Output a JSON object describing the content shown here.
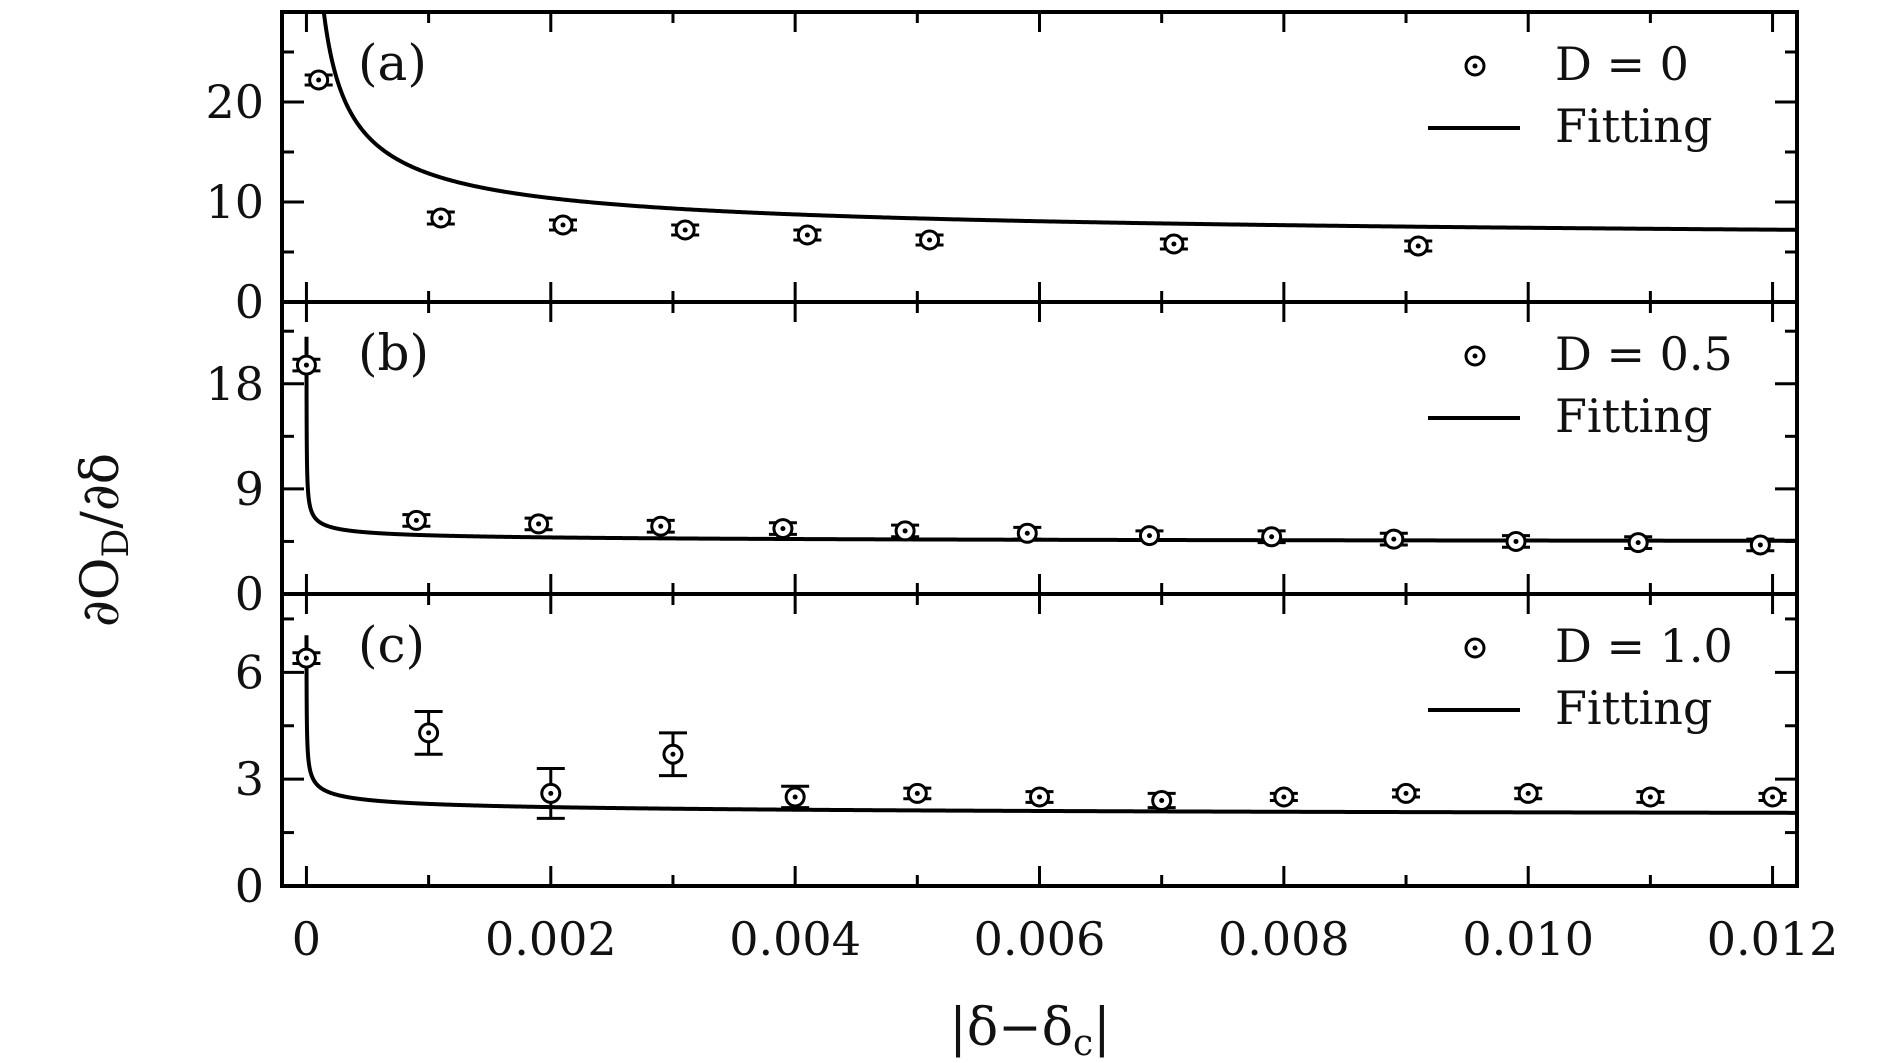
{
  "chart_data": {
    "type": "scatter",
    "xlabel": "|δ−δ_c|",
    "ylabel": "∂O_D/∂δ",
    "x_ticks": [
      "0",
      "0.002",
      "0.004",
      "0.006",
      "0.008",
      "0.010",
      "0.012"
    ],
    "x_tick_values": [
      0,
      0.002,
      0.004,
      0.006,
      0.008,
      0.01,
      0.012
    ],
    "xlim": [
      -0.0002,
      0.0122
    ],
    "panels": [
      {
        "label": "(a)",
        "legend": {
          "marker": "D = 0",
          "line": "Fitting"
        },
        "ylim": [
          0,
          29
        ],
        "y_ticks": [
          "0",
          "10",
          "20"
        ],
        "y_tick_values": [
          0,
          10,
          20
        ],
        "points": [
          {
            "x": 0.0001,
            "y": 22.2,
            "err": 0.5
          },
          {
            "x": 0.0011,
            "y": 8.4,
            "err": 0.6
          },
          {
            "x": 0.0021,
            "y": 7.7,
            "err": 0.5
          },
          {
            "x": 0.0031,
            "y": 7.2,
            "err": 0.5
          },
          {
            "x": 0.0041,
            "y": 6.7,
            "err": 0.5
          },
          {
            "x": 0.0051,
            "y": 6.2,
            "err": 0.5
          },
          {
            "x": 0.0071,
            "y": 5.8,
            "err": 0.5
          },
          {
            "x": 0.0091,
            "y": 5.6,
            "err": 0.5
          }
        ],
        "fit": {
          "a": 5.6,
          "b": 0.115,
          "c": 0.6,
          "x0": 0.0
        }
      },
      {
        "label": "(b)",
        "legend": {
          "marker": "D = 0.5",
          "line": "Fitting"
        },
        "ylim": [
          0,
          25
        ],
        "y_ticks": [
          "0",
          "9",
          "18"
        ],
        "y_tick_values": [
          0,
          9,
          18
        ],
        "points": [
          {
            "x": 0.0,
            "y": 19.6,
            "err": 0.5
          },
          {
            "x": 0.0009,
            "y": 6.3,
            "err": 0.5
          },
          {
            "x": 0.0019,
            "y": 6.0,
            "err": 0.5
          },
          {
            "x": 0.0029,
            "y": 5.8,
            "err": 0.5
          },
          {
            "x": 0.0039,
            "y": 5.6,
            "err": 0.5
          },
          {
            "x": 0.0049,
            "y": 5.4,
            "err": 0.5
          },
          {
            "x": 0.0059,
            "y": 5.2,
            "err": 0.5
          },
          {
            "x": 0.0069,
            "y": 5.0,
            "err": 0.4
          },
          {
            "x": 0.0079,
            "y": 4.9,
            "err": 0.5
          },
          {
            "x": 0.0089,
            "y": 4.7,
            "err": 0.5
          },
          {
            "x": 0.0099,
            "y": 4.5,
            "err": 0.5
          },
          {
            "x": 0.0109,
            "y": 4.4,
            "err": 0.5
          },
          {
            "x": 0.0119,
            "y": 4.2,
            "err": 0.5
          }
        ],
        "fit": {
          "a": 4.3,
          "b": 0.04,
          "c": 0.42,
          "x0": 0.0
        }
      },
      {
        "label": "(c)",
        "legend": {
          "marker": "D = 1.0",
          "line": "Fitting"
        },
        "ylim": [
          0,
          8.2
        ],
        "y_ticks": [
          "0",
          "3",
          "6"
        ],
        "y_tick_values": [
          0,
          3,
          6
        ],
        "points": [
          {
            "x": 0.0,
            "y": 6.4,
            "err": 0.15
          },
          {
            "x": 0.001,
            "y": 4.3,
            "err": 0.6
          },
          {
            "x": 0.002,
            "y": 2.6,
            "err": 0.7
          },
          {
            "x": 0.003,
            "y": 3.7,
            "err": 0.6
          },
          {
            "x": 0.004,
            "y": 2.5,
            "err": 0.3
          },
          {
            "x": 0.005,
            "y": 2.6,
            "err": 0.15
          },
          {
            "x": 0.006,
            "y": 2.5,
            "err": 0.15
          },
          {
            "x": 0.007,
            "y": 2.4,
            "err": 0.2
          },
          {
            "x": 0.008,
            "y": 2.5,
            "err": 0.1
          },
          {
            "x": 0.009,
            "y": 2.6,
            "err": 0.1
          },
          {
            "x": 0.01,
            "y": 2.6,
            "err": 0.15
          },
          {
            "x": 0.011,
            "y": 2.5,
            "err": 0.15
          },
          {
            "x": 0.012,
            "y": 2.5,
            "err": 0.1
          }
        ],
        "fit": {
          "a": 1.85,
          "b": 0.05,
          "c": 0.32,
          "x0": 0.0
        }
      }
    ]
  }
}
